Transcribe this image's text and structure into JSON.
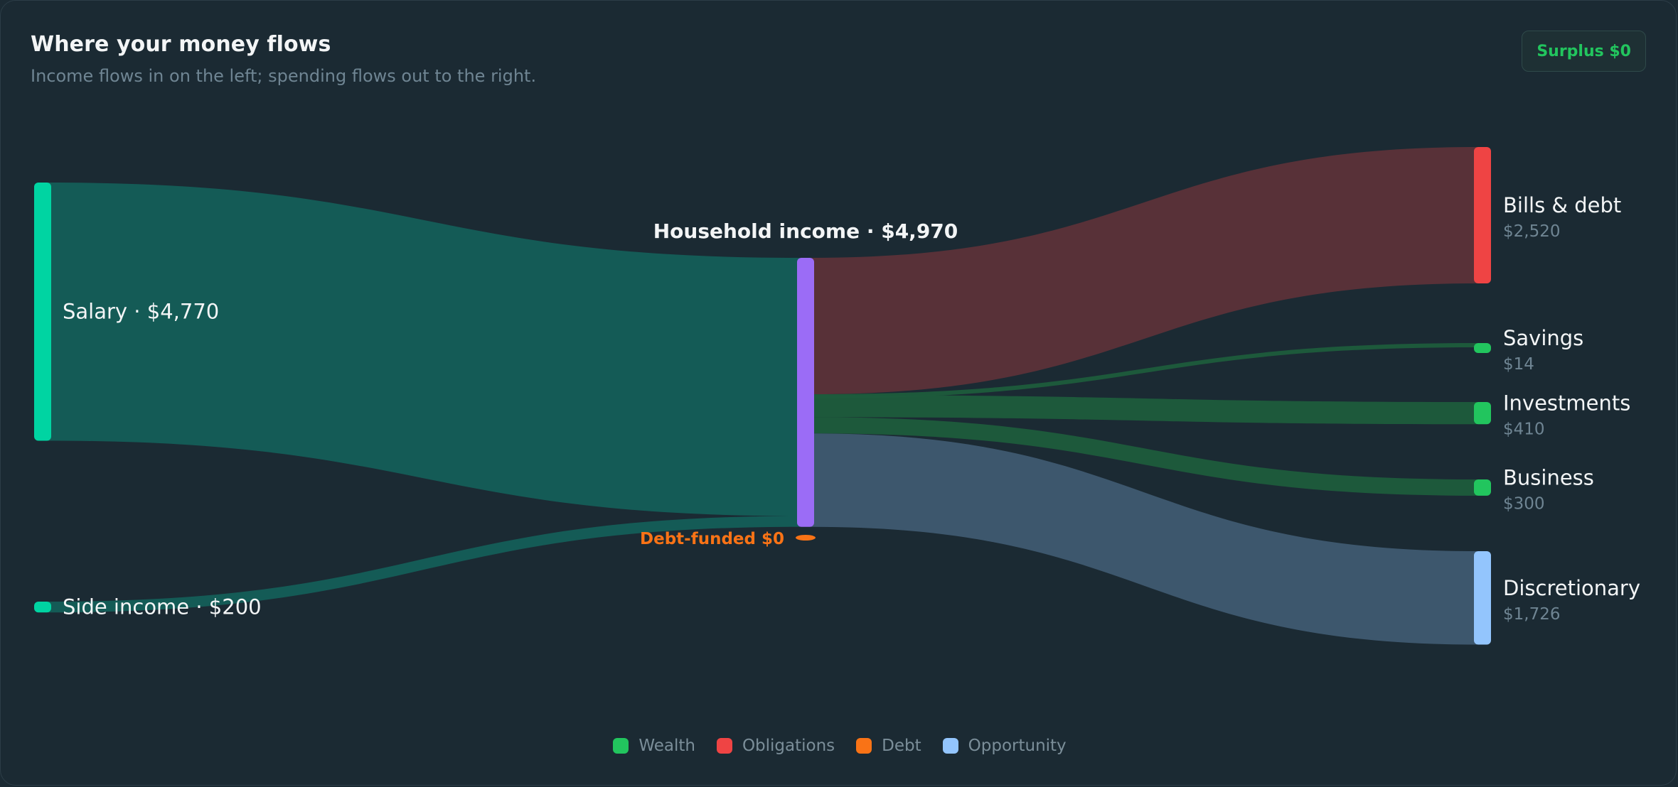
{
  "header": {
    "title": "Where your money flows",
    "subtitle": "Income flows in on the left; spending flows out to the right.",
    "surplus_label": "Surplus $0"
  },
  "chart_data": {
    "type": "sankey",
    "nodes": [
      {
        "id": "salary",
        "label": "Salary · $4,770",
        "value": 4770,
        "color": "#00d4a2"
      },
      {
        "id": "side",
        "label": "Side income · $200",
        "value": 200,
        "color": "#00d4a2"
      },
      {
        "id": "household",
        "label": "Household income · $4,970",
        "value": 4970,
        "color": "#9b6cf6"
      },
      {
        "id": "debtfunded",
        "label": "Debt-funded $0",
        "value": 0,
        "color": "#f97316"
      },
      {
        "id": "bills",
        "label": "Bills & debt",
        "amount": "$2,520",
        "value": 2520,
        "color": "#ef4444"
      },
      {
        "id": "savings",
        "label": "Savings",
        "amount": "$14",
        "value": 14,
        "color": "#22c55e"
      },
      {
        "id": "investments",
        "label": "Investments",
        "amount": "$410",
        "value": 410,
        "color": "#22c55e"
      },
      {
        "id": "business",
        "label": "Business",
        "amount": "$300",
        "value": 300,
        "color": "#22c55e"
      },
      {
        "id": "discretionary",
        "label": "Discretionary",
        "amount": "$1,726",
        "value": 1726,
        "color": "#93c5fd"
      }
    ],
    "links": [
      {
        "source": "salary",
        "target": "household",
        "value": 4770
      },
      {
        "source": "side",
        "target": "household",
        "value": 200
      },
      {
        "source": "household",
        "target": "bills",
        "value": 2520
      },
      {
        "source": "household",
        "target": "savings",
        "value": 14
      },
      {
        "source": "household",
        "target": "investments",
        "value": 410
      },
      {
        "source": "household",
        "target": "business",
        "value": 300
      },
      {
        "source": "household",
        "target": "discretionary",
        "value": 1726
      }
    ],
    "legend": [
      {
        "label": "Wealth",
        "color": "#22c55e"
      },
      {
        "label": "Obligations",
        "color": "#ef4444"
      },
      {
        "label": "Debt",
        "color": "#f97316"
      },
      {
        "label": "Opportunity",
        "color": "#93c5fd"
      }
    ]
  }
}
